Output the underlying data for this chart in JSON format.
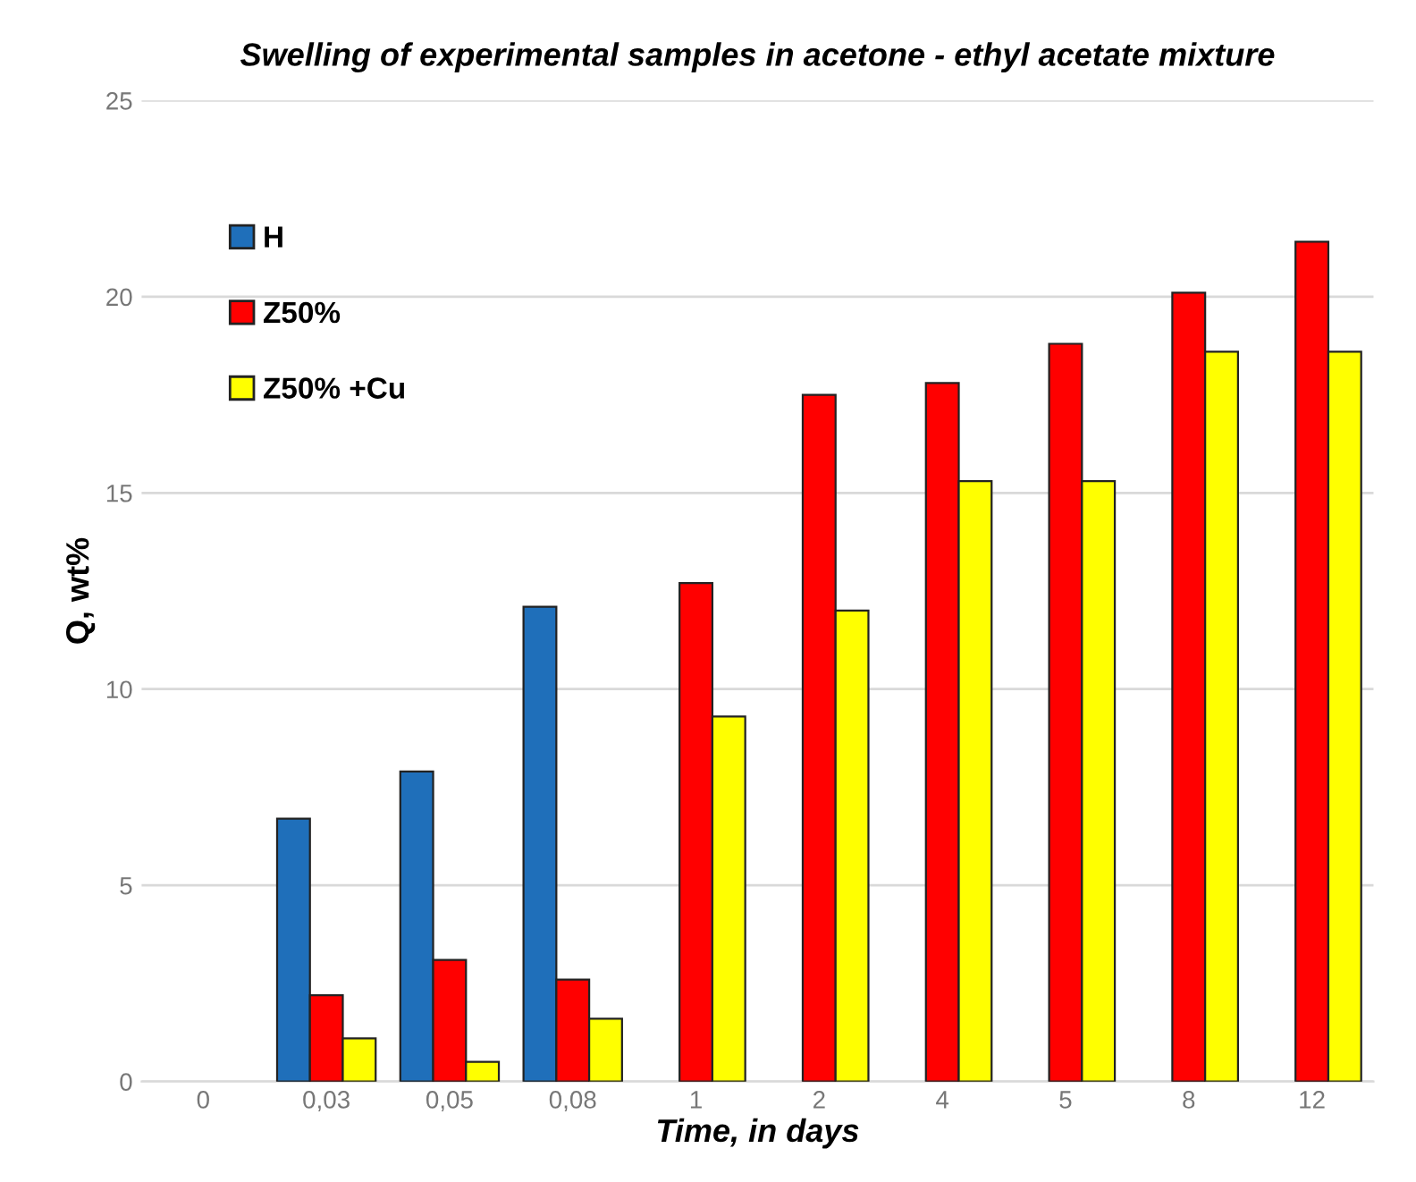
{
  "chart_data": {
    "type": "bar",
    "title": "Swelling of experimental samples in acetone - ethyl acetate mixture",
    "xlabel": "Time, in days",
    "ylabel": "Q, wt%",
    "categories": [
      "0",
      "0,03",
      "0,05",
      "0,08",
      "1",
      "2",
      "4",
      "5",
      "8",
      "12"
    ],
    "series": [
      {
        "name": "H",
        "color": "#1f6fba",
        "values": [
          null,
          6.7,
          7.9,
          12.1,
          null,
          null,
          null,
          null,
          null,
          null
        ]
      },
      {
        "name": "Z50%",
        "color": "#ff0000",
        "values": [
          null,
          2.2,
          3.1,
          2.6,
          12.7,
          17.5,
          17.8,
          18.8,
          20.1,
          21.4
        ]
      },
      {
        "name": "Z50% +Cu",
        "color": "#ffff00",
        "values": [
          null,
          1.1,
          0.5,
          1.6,
          9.3,
          12.0,
          15.3,
          15.3,
          18.6,
          18.6
        ]
      }
    ],
    "ylim": [
      0,
      25
    ],
    "yticks": [
      0,
      5,
      10,
      15,
      20,
      25
    ],
    "grid": "y",
    "legend": "top left"
  }
}
